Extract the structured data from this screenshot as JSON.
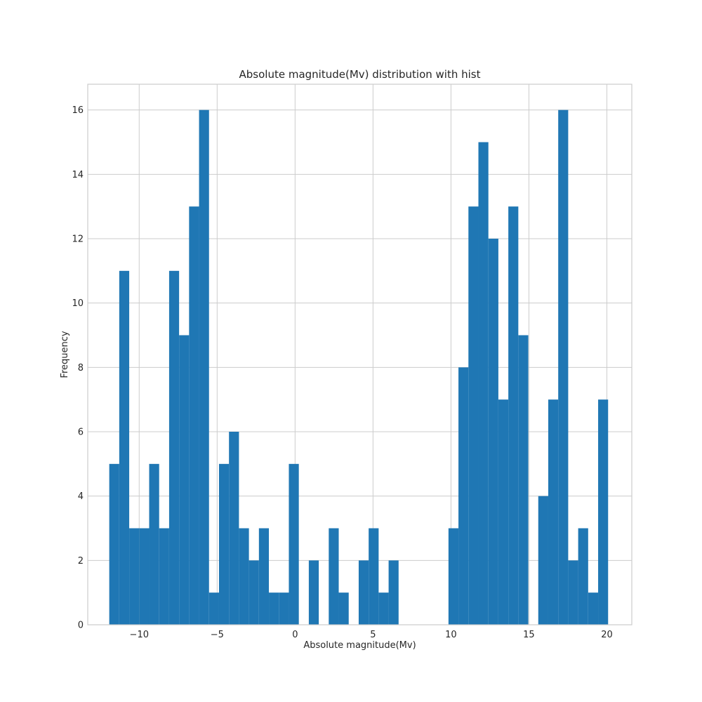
{
  "chart_data": {
    "type": "bar",
    "title": "Absolute magnitude(Mv) distribution with hist",
    "xlabel": "Absolute magnitude(Mv)",
    "ylabel": "Frequency",
    "xlim": [
      -13.3,
      21.6
    ],
    "ylim": [
      0,
      16.8
    ],
    "xticks": [
      -10,
      -5,
      0,
      5,
      10,
      15,
      20
    ],
    "xtick_labels": [
      "−10",
      "−5",
      "0",
      "5",
      "10",
      "15",
      "20"
    ],
    "yticks": [
      0,
      2,
      4,
      6,
      8,
      10,
      12,
      14,
      16
    ],
    "ytick_labels": [
      "0",
      "2",
      "4",
      "6",
      "8",
      "10",
      "12",
      "14",
      "16"
    ],
    "grid": true,
    "bar_color": "#1f77b4",
    "bin_start": -11.92,
    "bin_width": 0.64,
    "counts": [
      5,
      11,
      3,
      3,
      5,
      3,
      11,
      9,
      13,
      16,
      1,
      5,
      6,
      3,
      2,
      3,
      1,
      1,
      5,
      0,
      2,
      0,
      3,
      1,
      0,
      2,
      3,
      1,
      2,
      0,
      0,
      0,
      0,
      0,
      3,
      8,
      13,
      15,
      12,
      7,
      13,
      9,
      0,
      4,
      7,
      16,
      2,
      3,
      1,
      7
    ]
  }
}
